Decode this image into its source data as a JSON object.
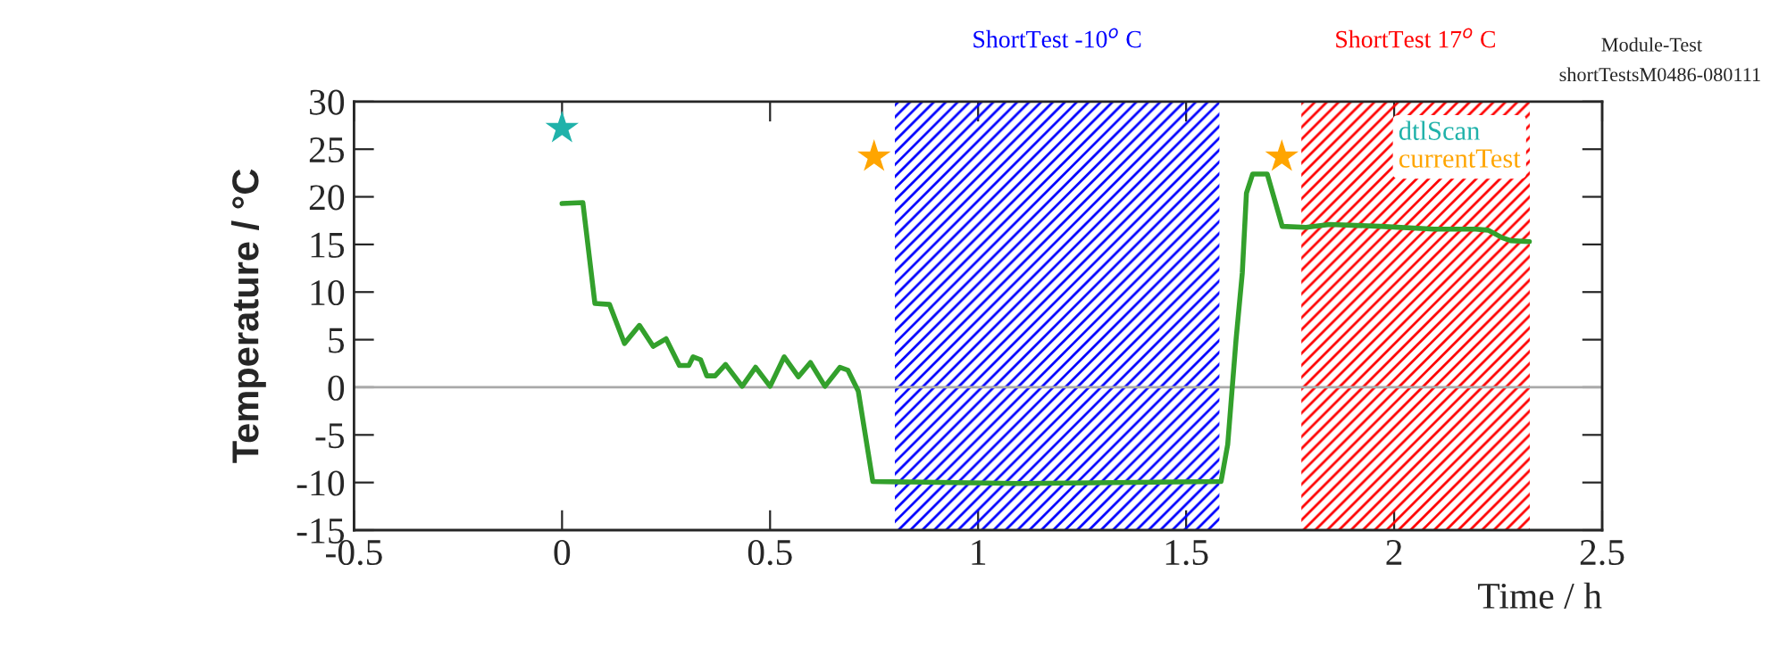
{
  "chart_data": {
    "type": "line",
    "xlabel": "Time / h",
    "ylabel": "Temperature / °C",
    "xlim": [
      -0.5,
      2.5
    ],
    "xticks": [
      -0.5,
      0,
      0.5,
      1,
      1.5,
      2,
      2.5
    ],
    "ylim": [
      -15,
      30
    ],
    "yticks": [
      -15,
      -10,
      -5,
      0,
      5,
      10,
      15,
      20,
      25,
      30
    ],
    "grid": false,
    "legend": "top right",
    "series": [
      {
        "color": "#33a02c",
        "x": [
          0,
          0.05,
          0.079,
          0.114,
          0.15,
          0.186,
          0.219,
          0.25,
          0.282,
          0.305,
          0.315,
          0.333,
          0.348,
          0.368,
          0.393,
          0.433,
          0.465,
          0.5,
          0.534,
          0.568,
          0.597,
          0.632,
          0.668,
          0.687,
          0.712,
          0.747,
          1.1,
          1.584,
          1.6,
          1.62,
          1.635,
          1.645,
          1.66,
          1.695,
          1.731,
          1.788,
          1.845,
          1.967,
          2.096,
          2.196,
          2.226,
          2.26,
          2.28,
          2.325
        ],
        "values": [
          19.3,
          19.4,
          8.8,
          8.7,
          4.6,
          6.5,
          4.3,
          5.1,
          2.3,
          2.3,
          3.2,
          2.9,
          1.2,
          1.2,
          2.4,
          0.1,
          2.1,
          0.1,
          3.2,
          1.1,
          2.6,
          0.1,
          2.1,
          1.8,
          -0.4,
          -9.9,
          -10.1,
          -9.9,
          -6,
          5,
          12,
          20.4,
          22.4,
          22.4,
          16.9,
          16.8,
          17.1,
          16.9,
          16.6,
          16.6,
          16.5,
          15.7,
          15.4,
          15.3
        ]
      },
      {
        "type": "scatter",
        "name": "dtlScan",
        "color": "#20b2aa",
        "marker": "star",
        "x": [
          0
        ],
        "values": [
          27.2
        ]
      },
      {
        "type": "scatter",
        "name": "currentTest",
        "color": "#ffa500",
        "marker": "star",
        "x": [
          0.75,
          1.73
        ],
        "values": [
          24.2,
          24.2
        ]
      }
    ],
    "ref_lines": [
      {
        "axis": "y",
        "value": 0,
        "color": "#a9a9a9"
      }
    ],
    "bands": [
      {
        "axis": "x",
        "from": 0.8,
        "to": 1.58,
        "label": "ShortTest -10$^{o}$ C",
        "color": "#0000ff"
      },
      {
        "axis": "x",
        "from": 1.777,
        "to": 2.326,
        "label": "ShortTest 17$^{o}$ C",
        "color": "#ff0000"
      }
    ],
    "annotations": [
      "Module-Test",
      "shortTestsM0486-080111"
    ]
  }
}
